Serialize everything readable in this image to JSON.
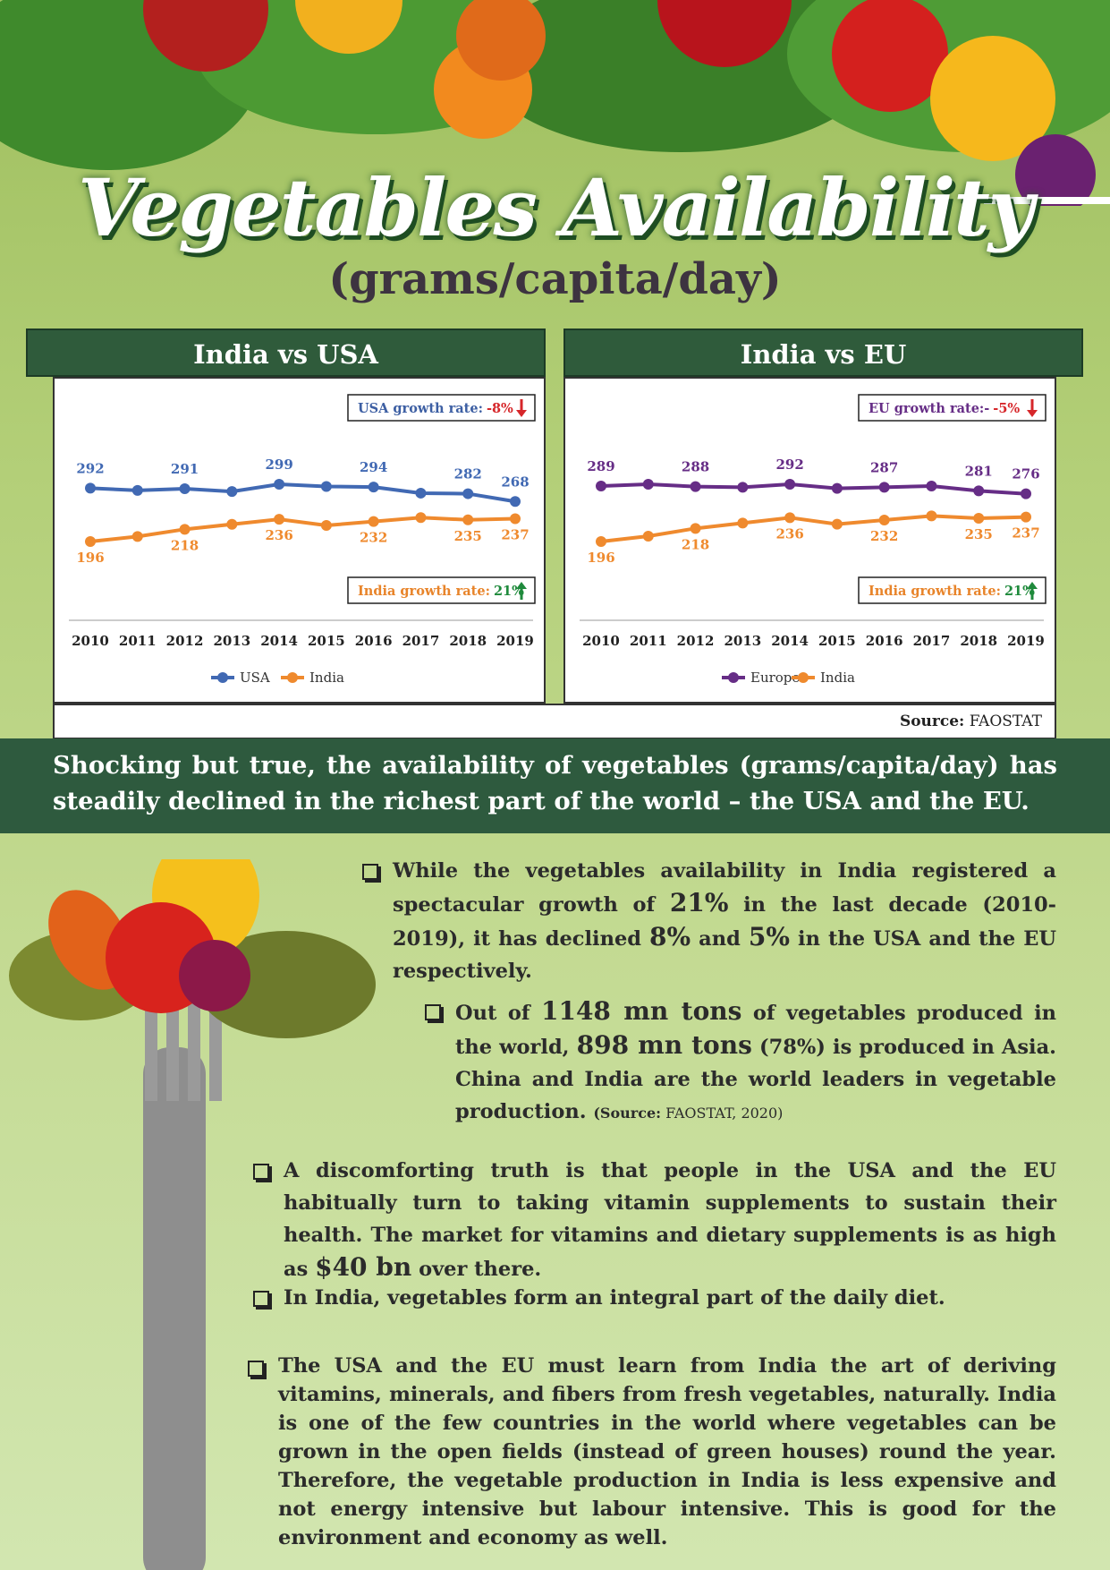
{
  "header": {
    "title": "Vegetables Availability",
    "subtitle": "(grams/capita/day)"
  },
  "chart_data": [
    {
      "type": "line",
      "title": "India vs USA",
      "categories": [
        "2010",
        "2011",
        "2012",
        "2013",
        "2014",
        "2015",
        "2016",
        "2017",
        "2018",
        "2019"
      ],
      "series": [
        {
          "name": "USA",
          "color": "#4169b3",
          "values": [
            292,
            288,
            291,
            286,
            299,
            295,
            294,
            283,
            282,
            268
          ]
        },
        {
          "name": "India",
          "color": "#ef8a2e",
          "values": [
            196,
            205,
            218,
            227,
            236,
            225,
            232,
            239,
            235,
            237
          ]
        }
      ],
      "annotations": [
        {
          "label": "USA growth rate:",
          "value": "-8%",
          "color": "#3d5fa3",
          "value_color": "#d6262a",
          "trend": "down"
        },
        {
          "label": "India growth rate:",
          "value": "21%",
          "color": "#e8842a",
          "value_color": "#1f8a3c",
          "trend": "up"
        }
      ]
    },
    {
      "type": "line",
      "title": "India vs EU",
      "categories": [
        "2010",
        "2011",
        "2012",
        "2013",
        "2014",
        "2015",
        "2016",
        "2017",
        "2018",
        "2019"
      ],
      "series": [
        {
          "name": "Europe",
          "color": "#662d86",
          "values": [
            289,
            292,
            288,
            287,
            292,
            285,
            287,
            289,
            281,
            276
          ]
        },
        {
          "name": "India",
          "color": "#ef8a2e",
          "values": [
            196,
            205,
            218,
            227,
            236,
            225,
            232,
            239,
            235,
            237
          ]
        }
      ],
      "annotations": [
        {
          "label": "EU growth rate:-",
          "value": "-5%",
          "color": "#662d86",
          "value_color": "#d6262a",
          "trend": "down"
        },
        {
          "label": "India growth rate:",
          "value": "21%",
          "color": "#e8842a",
          "value_color": "#1f8a3c",
          "trend": "up"
        }
      ]
    }
  ],
  "source": {
    "label": "Source:",
    "text": "FAOSTAT"
  },
  "banner": "Shocking but true, the availability of vegetables (grams/capita/day) has steadily declined in the richest part of the world – the USA and the EU.",
  "bullets": [
    [
      "While the vegetables availability in India registered a spectacular growth of ",
      "21%",
      " in the last decade (2010-2019), it has declined ",
      "8%",
      " and ",
      "5%",
      " in the USA and the EU respectively."
    ],
    [
      "Out of ",
      "1148 mn tons",
      " of vegetables produced in the world, ",
      "898 mn tons",
      " (78%) is produced in Asia. China and India are the world leaders in vegetable production. ",
      "(Source:",
      " FAOSTAT, 2020)"
    ],
    [
      "A discomforting truth is that people in the USA and the EU habitually turn to taking vitamin supplements to sustain their health. The market for vitamins and dietary supplements is as high as ",
      "$40 bn",
      " over there."
    ],
    [
      "In India, vegetables form an integral part of the daily diet."
    ],
    [
      "The USA and the EU must learn from India the art of deriving vitamins, minerals, and fibers from fresh vegetables, naturally. India is one of the few countries in the world where vegetables can be grown in the open fields (instead of green houses) round the year. Therefore, the vegetable production in India is less expensive and not energy intensive but labour intensive. This is good for the environment and economy as well."
    ]
  ]
}
